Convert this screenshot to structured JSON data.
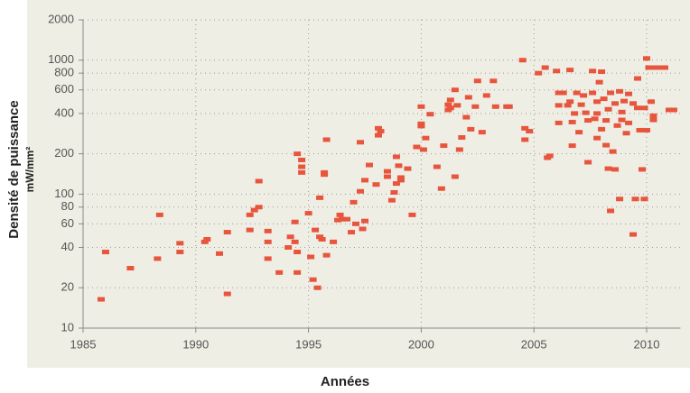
{
  "chart_data": {
    "type": "scatter",
    "xlabel": "Années",
    "ylabel": "Densité de puissance",
    "ylabel_units": "mW/mm²",
    "color": "#e8553d",
    "yscale": "log",
    "grid": true,
    "xlim": [
      1985,
      2011.5
    ],
    "ylim": [
      10,
      2000
    ],
    "xticks": [
      1985,
      1990,
      1995,
      2000,
      2005,
      2010
    ],
    "yticks": [
      10,
      20,
      40,
      60,
      80,
      100,
      200,
      400,
      600,
      800,
      1000,
      2000
    ],
    "x": [
      1985.8,
      1986.0,
      1987.1,
      1988.3,
      1988.4,
      1989.3,
      1989.3,
      1990.4,
      1990.5,
      1991.05,
      1991.4,
      1991.4,
      1992.4,
      1992.4,
      1992.6,
      1992.8,
      1992.8,
      1993.2,
      1993.2,
      1993.2,
      1993.7,
      1994.1,
      1994.2,
      1994.4,
      1994.4,
      1994.5,
      1994.5,
      1994.5,
      1994.7,
      1994.7,
      1994.7,
      1995.0,
      1995.1,
      1995.2,
      1995.3,
      1995.4,
      1995.5,
      1995.5,
      1995.6,
      1995.7,
      1995.7,
      1995.8,
      1995.8,
      1996.1,
      1996.3,
      1996.4,
      1996.5,
      1996.7,
      1996.9,
      1997.0,
      1997.1,
      1997.3,
      1997.3,
      1997.4,
      1997.5,
      1997.5,
      1997.7,
      1998.0,
      1998.1,
      1998.1,
      1998.2,
      1998.5,
      1998.5,
      1998.7,
      1998.8,
      1998.9,
      1998.9,
      1999.0,
      1999.1,
      1999.1,
      1999.4,
      1999.6,
      1999.8,
      2000.0,
      2000.0,
      2000.0,
      2000.1,
      2000.2,
      2000.4,
      2000.7,
      2000.9,
      2001.0,
      2001.2,
      2001.2,
      2001.3,
      2001.3,
      2001.5,
      2001.5,
      2001.6,
      2001.7,
      2001.8,
      2002.0,
      2002.1,
      2002.2,
      2002.4,
      2002.5,
      2002.7,
      2002.9,
      2003.2,
      2003.3,
      2003.8,
      2003.9,
      2004.5,
      2004.6,
      2004.6,
      2004.8,
      2005.2,
      2005.5,
      2005.6,
      2005.7,
      2006.0,
      2006.1,
      2006.1,
      2006.1,
      2006.3,
      2006.5,
      2006.6,
      2006.6,
      2006.7,
      2006.7,
      2006.8,
      2006.9,
      2007.0,
      2007.1,
      2007.2,
      2007.3,
      2007.4,
      2007.4,
      2007.6,
      2007.6,
      2007.7,
      2007.8,
      2007.8,
      2007.8,
      2007.9,
      2008.0,
      2008.0,
      2008.1,
      2008.2,
      2008.2,
      2008.3,
      2008.3,
      2008.4,
      2008.4,
      2008.5,
      2008.6,
      2008.6,
      2008.7,
      2008.8,
      2008.8,
      2008.9,
      2008.9,
      2009.0,
      2009.1,
      2009.2,
      2009.2,
      2009.4,
      2009.4,
      2009.5,
      2009.6,
      2009.6,
      2009.7,
      2009.8,
      2009.9,
      2009.9,
      2010.0,
      2010.0,
      2010.1,
      2010.2,
      2010.3,
      2010.3,
      2010.4,
      2010.7,
      2010.8,
      2011.0,
      2011.2
    ],
    "values": [
      16.4,
      37,
      28,
      33,
      70,
      37,
      43,
      44,
      46,
      36,
      18,
      52,
      54,
      70,
      76,
      80,
      125,
      33,
      44,
      53,
      26,
      40,
      48,
      44,
      62,
      200,
      26,
      37,
      160,
      180,
      145,
      72,
      34,
      23,
      54,
      20,
      48,
      94,
      46,
      140,
      145,
      255,
      35,
      44,
      64,
      70,
      65,
      65,
      52,
      87,
      60,
      244,
      105,
      55,
      63,
      127,
      165,
      118,
      310,
      275,
      295,
      135,
      148,
      90,
      103,
      190,
      120,
      163,
      133,
      127,
      155,
      70,
      225,
      450,
      335,
      322,
      215,
      262,
      395,
      160,
      110,
      230,
      425,
      465,
      505,
      440,
      600,
      135,
      460,
      215,
      265,
      375,
      528,
      305,
      450,
      700,
      290,
      545,
      700,
      450,
      450,
      450,
      1000,
      255,
      310,
      295,
      800,
      880,
      187,
      193,
      830,
      570,
      460,
      340,
      570,
      460,
      490,
      845,
      345,
      230,
      400,
      570,
      290,
      465,
      545,
      405,
      173,
      355,
      830,
      570,
      365,
      490,
      262,
      400,
      685,
      820,
      305,
      515,
      355,
      232,
      430,
      155,
      75,
      570,
      208,
      475,
      153,
      325,
      92,
      585,
      410,
      358,
      495,
      285,
      560,
      340,
      50,
      475,
      92,
      730,
      440,
      300,
      153,
      440,
      92,
      300,
      1030,
      880,
      490,
      385,
      358,
      880,
      880,
      880,
      425,
      425
    ]
  }
}
